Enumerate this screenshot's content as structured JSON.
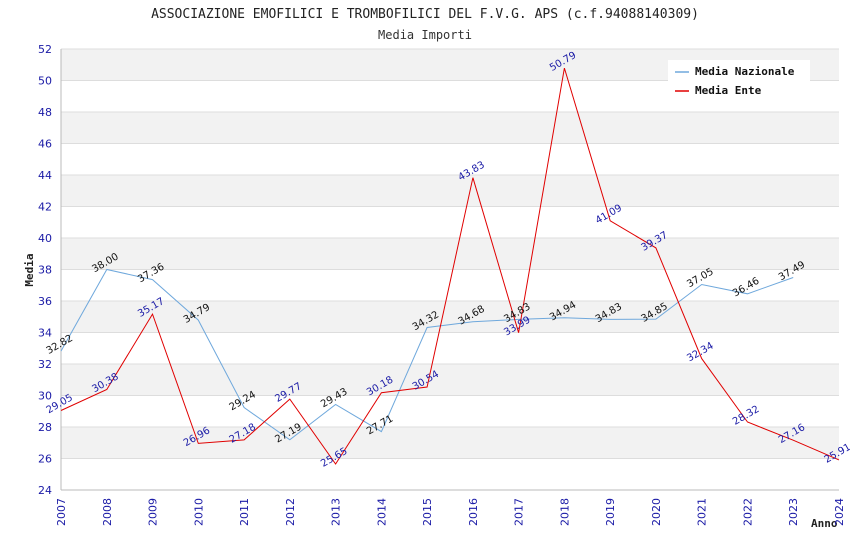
{
  "chart_data": {
    "type": "line",
    "title": "ASSOCIAZIONE EMOFILICI E TROMBOFILICI DEL F.V.G. APS (c.f.94088140309)",
    "subtitle": "Media Importi",
    "xlabel": "Anno",
    "ylabel": "Media",
    "ylim": [
      24,
      52
    ],
    "yticks": [
      "24",
      "26",
      "28",
      "30",
      "32",
      "34",
      "36",
      "38",
      "40",
      "42",
      "44",
      "46",
      "48",
      "50",
      "52"
    ],
    "x": [
      "2007",
      "2008",
      "2009",
      "2010",
      "2011",
      "2012",
      "2013",
      "2014",
      "2015",
      "2016",
      "2017",
      "2018",
      "2019",
      "2020",
      "2021",
      "2022",
      "2023",
      "2024"
    ],
    "grid": true,
    "legend_position": "top-right",
    "series": [
      {
        "name": "Media Nazionale",
        "color": "#6fa8dc",
        "values": [
          32.82,
          38.0,
          37.36,
          34.79,
          29.24,
          27.19,
          29.43,
          27.71,
          34.32,
          34.68,
          34.83,
          34.94,
          34.83,
          34.85,
          37.05,
          36.46,
          37.49,
          null
        ],
        "labels": [
          "32.82",
          "38.00",
          "37.36",
          "34.79",
          "29.24",
          "27.19",
          "29.43",
          "27.71",
          "34.32",
          "34.68",
          "34.83",
          "34.94",
          "34.83",
          "34.85",
          "37.05",
          "36.46",
          "37.49",
          null
        ]
      },
      {
        "name": "Media Ente",
        "color": "#e00000",
        "values": [
          29.05,
          30.38,
          35.17,
          26.96,
          27.18,
          29.77,
          25.65,
          30.18,
          30.54,
          43.83,
          33.99,
          50.79,
          41.09,
          39.37,
          32.34,
          28.32,
          27.16,
          25.91
        ],
        "labels": [
          "29.05",
          "30.38",
          "35.17",
          "26.96",
          "27.18",
          "29.77",
          "25.65",
          "30.18",
          "30.54",
          "43.83",
          "33.99",
          "50.79",
          "41.09",
          "39.37",
          "32.34",
          "28.32",
          "27.16",
          "25.91"
        ]
      }
    ]
  }
}
